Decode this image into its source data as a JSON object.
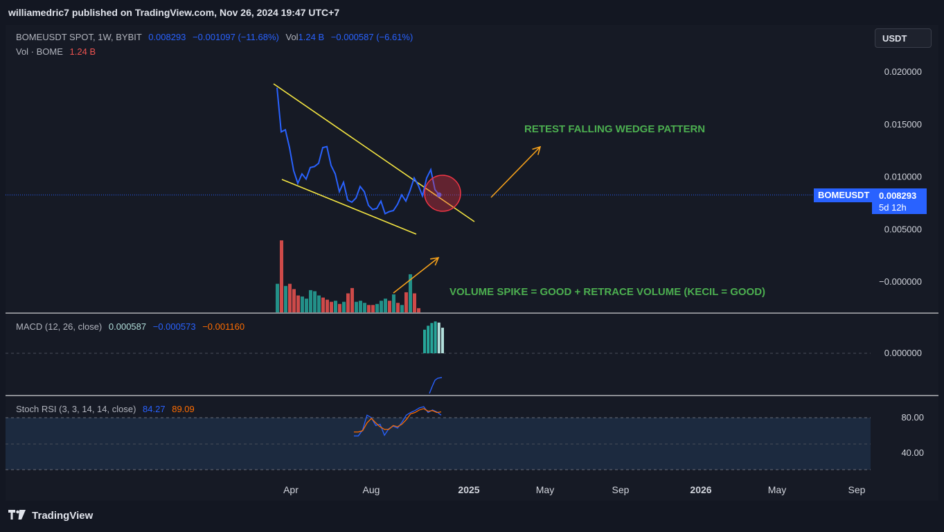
{
  "header": {
    "published": "williamedric7 published on TradingView.com, Nov 26, 2024 19:47 UTC+7"
  },
  "currency_button": "USDT",
  "legend": {
    "symbol": "BOMEUSDT SPOT, 1W, BYBIT",
    "price": "0.008293",
    "change": "−0.001097 (−11.68%)",
    "vol_label": "Vol",
    "vol_value": "1.24 B",
    "vol_change": "−0.000587 (−6.61%)",
    "vol_line_label": "Vol · BOME",
    "vol_line_value": "1.24 B"
  },
  "macd_legend": {
    "label": "MACD (12, 26, close)",
    "v1": "0.000587",
    "v2": "−0.000573",
    "v3": "−0.001160"
  },
  "stoch_legend": {
    "label": "Stoch RSI (3, 3, 14, 14, close)",
    "k": "84.27",
    "d": "89.09"
  },
  "price_tag": {
    "symbol": "BOMEUSDT",
    "price": "0.008293",
    "countdown": "5d 12h"
  },
  "annotations": {
    "retest": "RETEST FALLING WEDGE PATTERN",
    "volume": "VOLUME SPIKE = GOOD + RETRACE VOLUME (KECIL = GOOD)"
  },
  "footer": {
    "brand": "TradingView"
  },
  "colors": {
    "line": "#2962ff",
    "wedge": "#f5e642",
    "arrow": "#f7a21b",
    "text_green": "#4caf50",
    "vol_up": "#26a69a",
    "vol_down": "#ef5350",
    "circle": "#f23645"
  },
  "chart_data": [
    {
      "type": "line",
      "series": [
        {
          "name": "BOMEUSDT",
          "values": [
            0.0185,
            0.0143,
            0.0145,
            0.0128,
            0.0106,
            0.0094,
            0.0103,
            0.0098,
            0.0109,
            0.011,
            0.0113,
            0.0128,
            0.0129,
            0.0111,
            0.0103,
            0.0086,
            0.0095,
            0.0078,
            0.0076,
            0.008,
            0.0091,
            0.0086,
            0.0073,
            0.0069,
            0.007,
            0.0077,
            0.0065,
            0.0067,
            0.0068,
            0.0074,
            0.0083,
            0.0077,
            0.0087,
            0.0099,
            0.0092,
            0.0082,
            0.0099,
            0.0107,
            0.0088,
            0.0083
          ]
        }
      ],
      "x": [
        "2024-03-18",
        "2024-03-25",
        "2024-04-01",
        "2024-04-08",
        "2024-04-15",
        "2024-04-22",
        "2024-04-29",
        "2024-05-06",
        "2024-05-13",
        "2024-05-20",
        "2024-05-27",
        "2024-06-03",
        "2024-06-10",
        "2024-06-17",
        "2024-06-24",
        "2024-07-01",
        "2024-07-08",
        "2024-07-15",
        "2024-07-22",
        "2024-07-29",
        "2024-08-05",
        "2024-08-12",
        "2024-08-19",
        "2024-08-26",
        "2024-09-02",
        "2024-09-09",
        "2024-09-16",
        "2024-09-23",
        "2024-09-30",
        "2024-10-07",
        "2024-10-14",
        "2024-10-21",
        "2024-10-28",
        "2024-11-04",
        "2024-11-11",
        "2024-11-18",
        "2024-11-25",
        "2024-12-02",
        "2024-12-09",
        "2024-12-16"
      ],
      "volume": [
        {
          "value": 0.0027,
          "dir": "up"
        },
        {
          "value": 0.0068,
          "dir": "down"
        },
        {
          "value": 0.0025,
          "dir": "up"
        },
        {
          "value": 0.0027,
          "dir": "down"
        },
        {
          "value": 0.0022,
          "dir": "down"
        },
        {
          "value": 0.0016,
          "dir": "down"
        },
        {
          "value": 0.0015,
          "dir": "up"
        },
        {
          "value": 0.0013,
          "dir": "up"
        },
        {
          "value": 0.0021,
          "dir": "up"
        },
        {
          "value": 0.002,
          "dir": "up"
        },
        {
          "value": 0.0016,
          "dir": "up"
        },
        {
          "value": 0.0014,
          "dir": "down"
        },
        {
          "value": 0.0012,
          "dir": "down"
        },
        {
          "value": 0.001,
          "dir": "down"
        },
        {
          "value": 0.0011,
          "dir": "up"
        },
        {
          "value": 0.0008,
          "dir": "down"
        },
        {
          "value": 0.001,
          "dir": "up"
        },
        {
          "value": 0.0018,
          "dir": "down"
        },
        {
          "value": 0.0023,
          "dir": "down"
        },
        {
          "value": 0.001,
          "dir": "up"
        },
        {
          "value": 0.0011,
          "dir": "up"
        },
        {
          "value": 0.0009,
          "dir": "up"
        },
        {
          "value": 0.0007,
          "dir": "down"
        },
        {
          "value": 0.0007,
          "dir": "down"
        },
        {
          "value": 0.0008,
          "dir": "up"
        },
        {
          "value": 0.0011,
          "dir": "up"
        },
        {
          "value": 0.0013,
          "dir": "up"
        },
        {
          "value": 0.0011,
          "dir": "down"
        },
        {
          "value": 0.0017,
          "dir": "up"
        },
        {
          "value": 0.0009,
          "dir": "down"
        },
        {
          "value": 0.0007,
          "dir": "up"
        },
        {
          "value": 0.0019,
          "dir": "down"
        },
        {
          "value": 0.0036,
          "dir": "up"
        },
        {
          "value": 0.0018,
          "dir": "down"
        },
        {
          "value": 0.0004,
          "dir": "down"
        }
      ],
      "ylim": [
        -0.002,
        0.0215
      ],
      "yticks": [
        "0.020000",
        "0.015000",
        "0.010000",
        "0.005000",
        "−0.000000"
      ]
    },
    {
      "type": "bar",
      "title": "MACD (12, 26, close)",
      "histogram": [
        0.0006,
        0.0007,
        0.00077,
        0.00081,
        0.00078,
        0.00065
      ],
      "macd_line": [
        -0.0001,
        0.0001,
        0.0003,
        0.00045,
        0.0005,
        0.00057
      ],
      "yticks": [
        "0.000000"
      ]
    },
    {
      "type": "line",
      "title": "Stoch RSI (3, 3, 14, 14, close)",
      "series": [
        {
          "name": "K",
          "values": [
            52,
            52,
            61,
            84,
            80,
            68,
            70,
            53,
            63,
            67,
            64,
            73,
            84,
            88,
            91,
            95,
            97,
            88,
            92,
            89,
            84
          ]
        },
        {
          "name": "D",
          "values": [
            58,
            58,
            60,
            72,
            79,
            72,
            66,
            62,
            62,
            68,
            66,
            70,
            77,
            86,
            88,
            92,
            94,
            90,
            91,
            88,
            89
          ]
        }
      ],
      "yticks": [
        "80.00",
        "40.00"
      ]
    }
  ],
  "time_axis": [
    "Apr",
    "Aug",
    "2025",
    "May",
    "Sep",
    "2026",
    "May",
    "Sep"
  ]
}
